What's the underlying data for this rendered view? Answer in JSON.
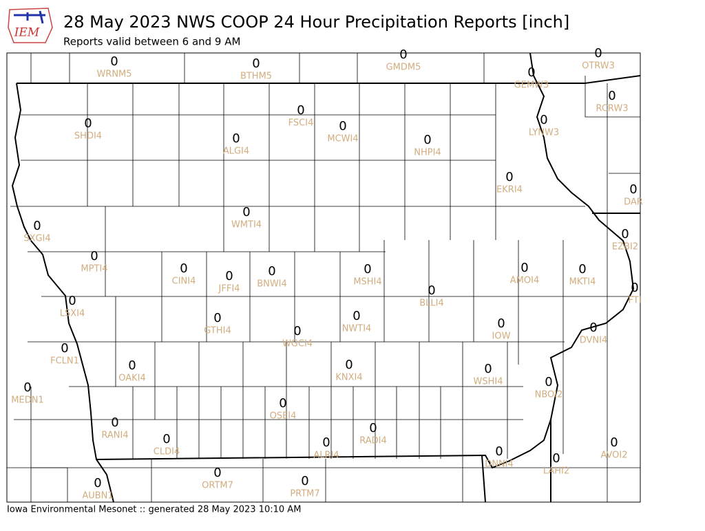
{
  "header": {
    "logo": "IEM",
    "title": "28 May 2023 NWS COOP 24 Hour Precipitation Reports [inch]",
    "subtitle": "Reports valid between 6 and 9 AM"
  },
  "stations": [
    {
      "id": "WRNM5",
      "value": 0
    },
    {
      "id": "BTHM5",
      "value": 0
    },
    {
      "id": "GMDM5",
      "value": 0
    },
    {
      "id": "OTRW3",
      "value": 0
    },
    {
      "id": "GEMW3",
      "value": 0
    },
    {
      "id": "RCRW3",
      "value": 0
    },
    {
      "id": "LYNW3",
      "value": 0
    },
    {
      "id": "SHDI4",
      "value": 0
    },
    {
      "id": "FSCI4",
      "value": 0
    },
    {
      "id": "MCWI4",
      "value": 0
    },
    {
      "id": "ALGI4",
      "value": 0
    },
    {
      "id": "NHPI4",
      "value": 0
    },
    {
      "id": "EKRI4",
      "value": 0
    },
    {
      "id": "DAR",
      "value": 0
    },
    {
      "id": "WMTI4",
      "value": 0
    },
    {
      "id": "SXGI4",
      "value": 0
    },
    {
      "id": "EZBI2",
      "value": 0
    },
    {
      "id": "MPTI4",
      "value": 0
    },
    {
      "id": "CINI4",
      "value": 0
    },
    {
      "id": "JFFI4",
      "value": 0
    },
    {
      "id": "BNWI4",
      "value": 0
    },
    {
      "id": "MSHI4",
      "value": 0
    },
    {
      "id": "AMOI4",
      "value": 0
    },
    {
      "id": "MKTI4",
      "value": 0
    },
    {
      "id": "FTI",
      "value": 0
    },
    {
      "id": "BLLI4",
      "value": 0
    },
    {
      "id": "LSXI4",
      "value": 0
    },
    {
      "id": "GTHI4",
      "value": 0
    },
    {
      "id": "NWTI4",
      "value": 0
    },
    {
      "id": "IOW",
      "value": 0
    },
    {
      "id": "DVNI4",
      "value": 0
    },
    {
      "id": "WGCI4",
      "value": 0
    },
    {
      "id": "FCLN1",
      "value": 0
    },
    {
      "id": "OAKI4",
      "value": 0
    },
    {
      "id": "KNXI4",
      "value": 0
    },
    {
      "id": "WSHI4",
      "value": 0
    },
    {
      "id": "NBOI2",
      "value": 0
    },
    {
      "id": "MEDN1",
      "value": 0
    },
    {
      "id": "OSEI4",
      "value": 0
    },
    {
      "id": "RANI4",
      "value": 0
    },
    {
      "id": "RADI4",
      "value": 0
    },
    {
      "id": "CLDI4",
      "value": 0
    },
    {
      "id": "ALRI4",
      "value": 0
    },
    {
      "id": "AVOI2",
      "value": 0
    },
    {
      "id": "DNNI4",
      "value": 0
    },
    {
      "id": "LAHI2",
      "value": 0
    },
    {
      "id": "ORTM7",
      "value": 0
    },
    {
      "id": "PRTM7",
      "value": 0
    },
    {
      "id": "AUBN1",
      "value": 0
    }
  ],
  "footer": "Iowa Environmental Mesonet :: generated 28 May 2023 10:10 AM"
}
